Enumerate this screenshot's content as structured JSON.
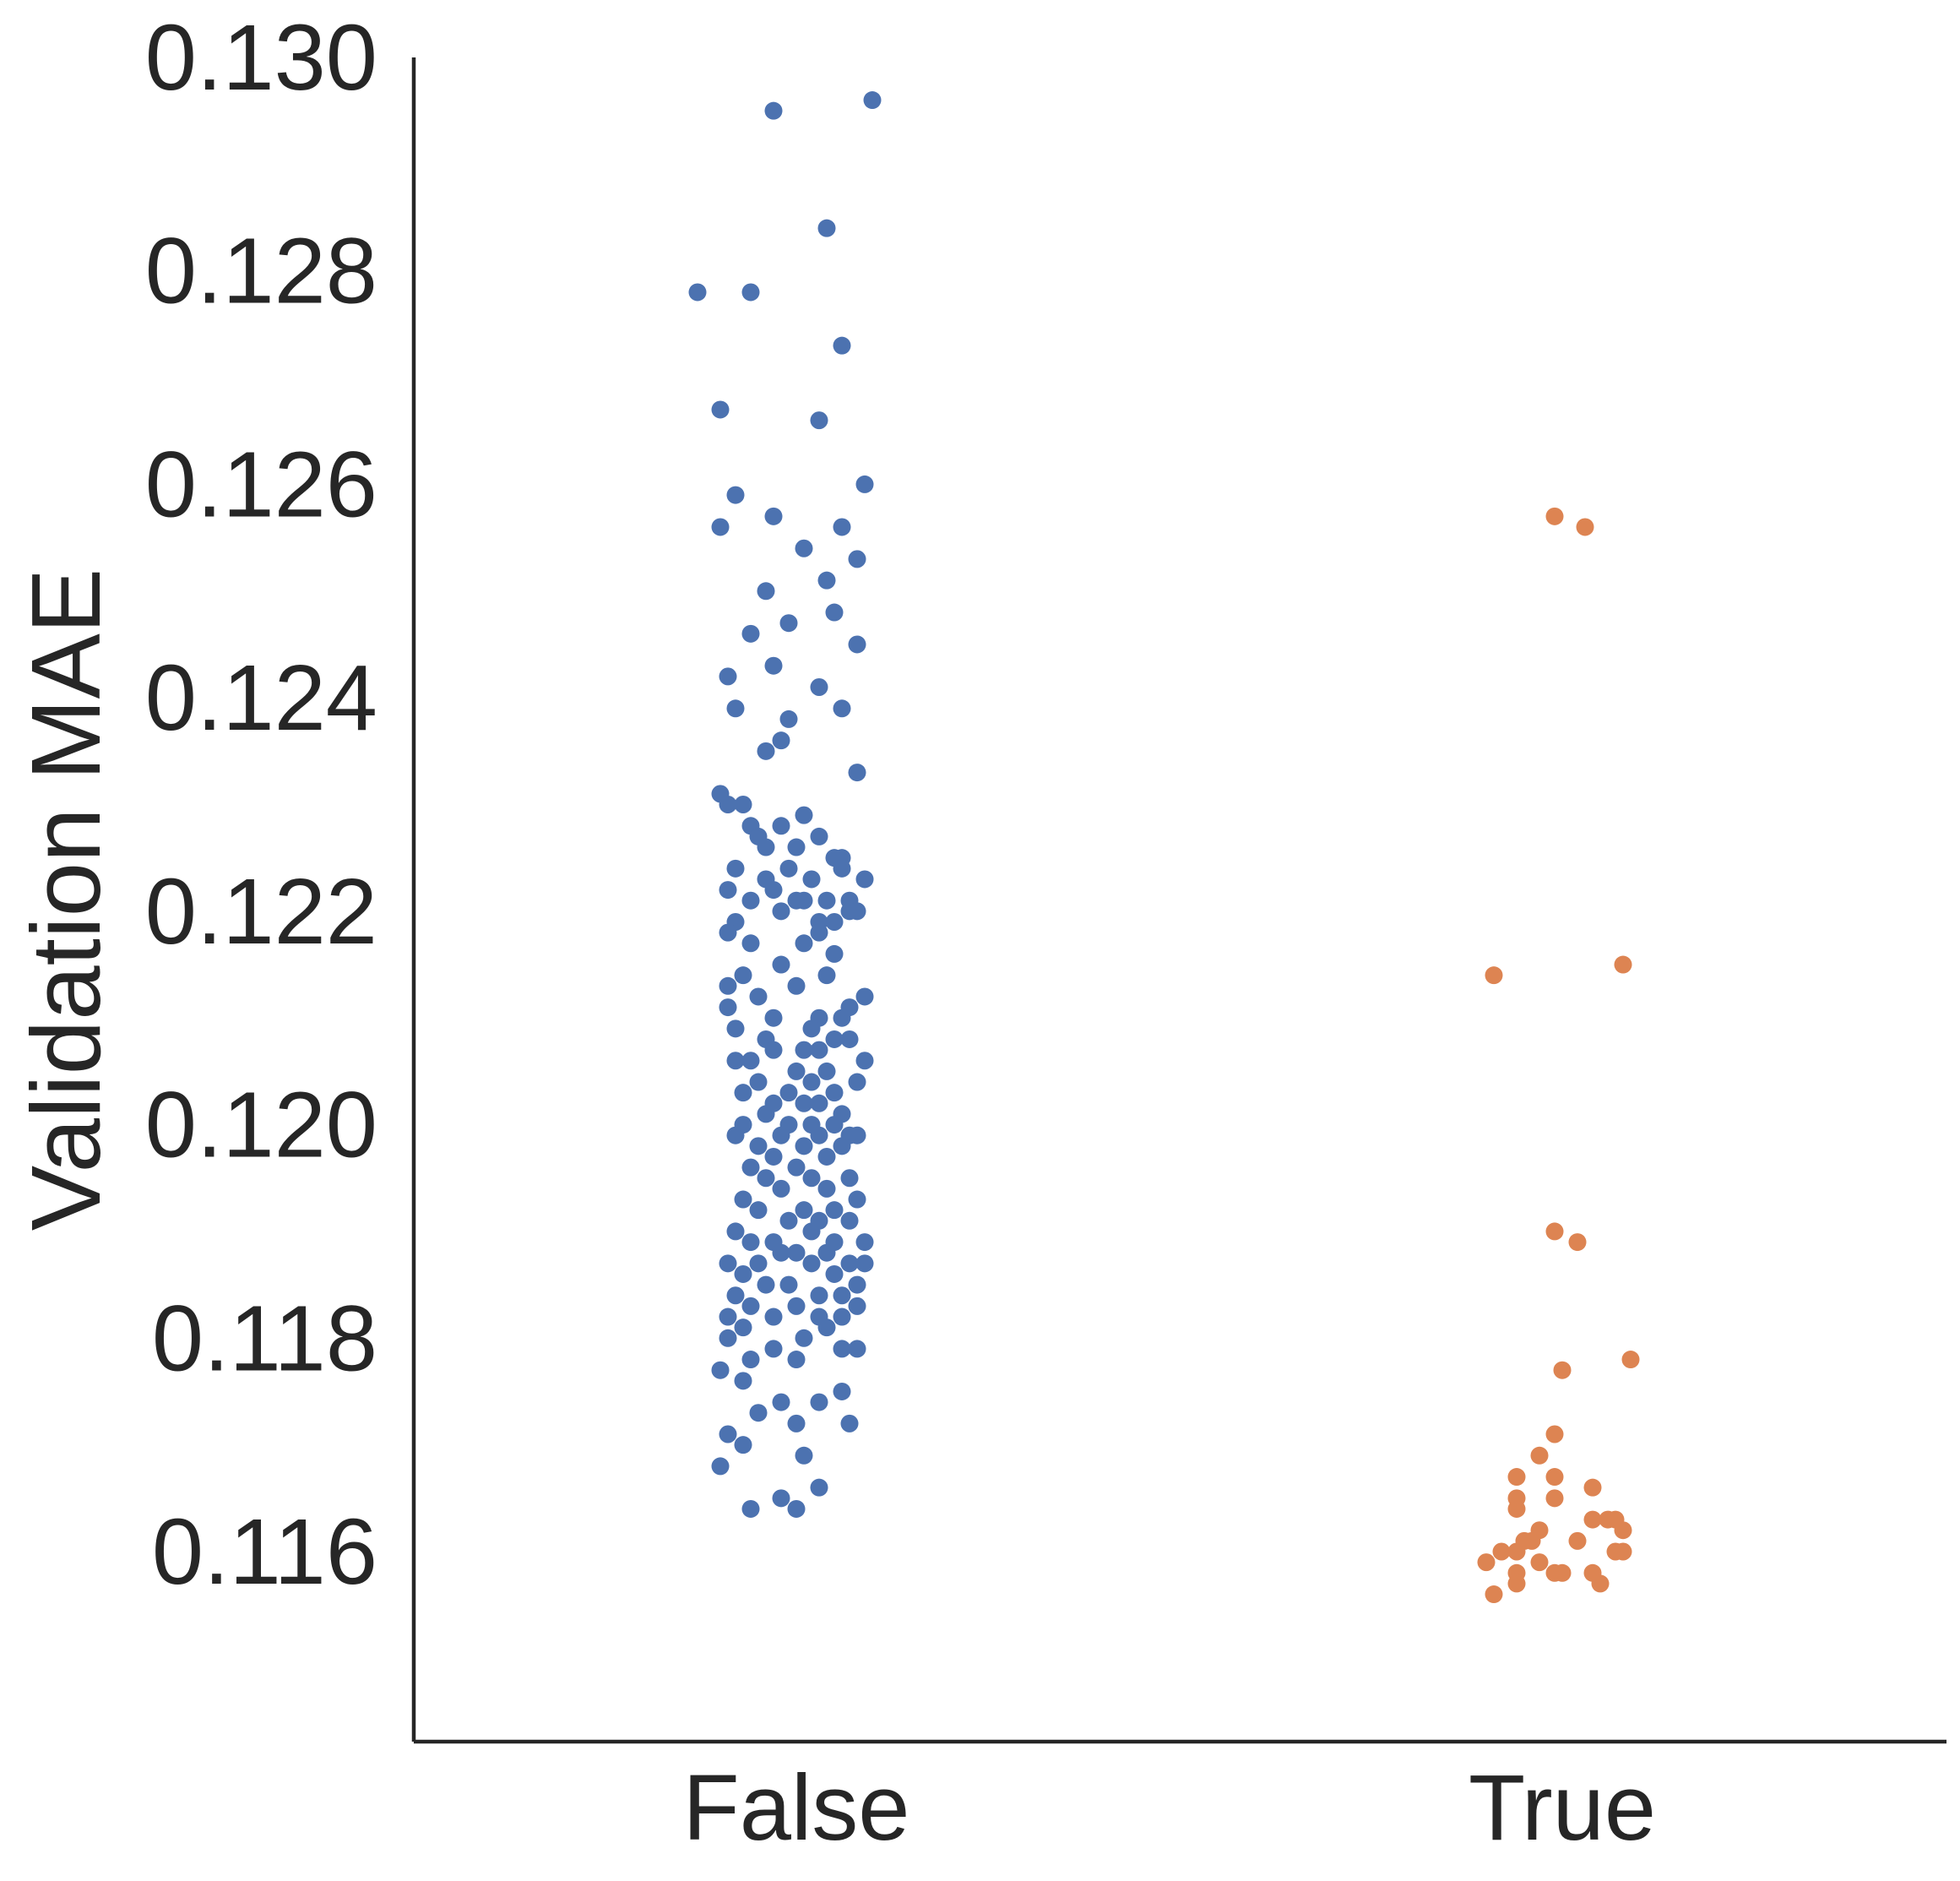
{
  "chart_data": {
    "type": "scatter",
    "subtype": "strip",
    "title": "",
    "xlabel": "",
    "ylabel": "Validation MAE",
    "categories": [
      "False",
      "True"
    ],
    "ylim": [
      0.1143,
      0.13
    ],
    "yticks": [
      "0.116",
      "0.118",
      "0.120",
      "0.122",
      "0.124",
      "0.126",
      "0.128",
      "0.130"
    ],
    "grid": false,
    "legend": "none",
    "colors": {
      "False": "#4c72b0",
      "True": "#dd8452",
      "axis": "#262626",
      "background": "#ffffff"
    },
    "series": [
      {
        "category": "False",
        "points": [
          [
            -0.03,
            0.1295
          ],
          [
            0.1,
            0.1296
          ],
          [
            0.04,
            0.1284
          ],
          [
            -0.06,
            0.1278
          ],
          [
            -0.13,
            0.1278
          ],
          [
            0.06,
            0.1273
          ],
          [
            -0.1,
            0.1267
          ],
          [
            0.03,
            0.1266
          ],
          [
            0.09,
            0.126
          ],
          [
            -0.08,
            0.1259
          ],
          [
            -0.03,
            0.1257
          ],
          [
            0.01,
            0.1254
          ],
          [
            0.08,
            0.1253
          ],
          [
            -0.1,
            0.1256
          ],
          [
            0.06,
            0.1256
          ],
          [
            0.04,
            0.1251
          ],
          [
            -0.04,
            0.125
          ],
          [
            -0.01,
            0.1247
          ],
          [
            0.05,
            0.1248
          ],
          [
            0.08,
            0.1245
          ],
          [
            -0.06,
            0.1246
          ],
          [
            -0.03,
            0.1243
          ],
          [
            0.03,
            0.1241
          ],
          [
            -0.09,
            0.1242
          ],
          [
            -0.08,
            0.1239
          ],
          [
            0.06,
            0.1239
          ],
          [
            -0.01,
            0.1238
          ],
          [
            -0.02,
            0.1236
          ],
          [
            -0.04,
            0.1235
          ],
          [
            0.08,
            0.1233
          ],
          [
            -0.1,
            0.1231
          ],
          [
            -0.09,
            0.123
          ],
          [
            -0.07,
            0.123
          ],
          [
            0.01,
            0.1229
          ],
          [
            0.03,
            0.1227
          ],
          [
            -0.06,
            0.1228
          ],
          [
            -0.02,
            0.1228
          ],
          [
            -0.05,
            0.1227
          ],
          [
            0.05,
            0.1225
          ],
          [
            0.0,
            0.1226
          ],
          [
            -0.04,
            0.1226
          ],
          [
            0.06,
            0.1225
          ],
          [
            0.06,
            0.1224
          ],
          [
            -0.01,
            0.1224
          ],
          [
            -0.08,
            0.1224
          ],
          [
            0.09,
            0.1223
          ],
          [
            0.02,
            0.1223
          ],
          [
            -0.04,
            0.1223
          ],
          [
            -0.03,
            0.1222
          ],
          [
            0.04,
            0.1221
          ],
          [
            0.07,
            0.1221
          ],
          [
            0.0,
            0.1221
          ],
          [
            -0.09,
            0.1222
          ],
          [
            0.01,
            0.1221
          ],
          [
            -0.06,
            0.1221
          ],
          [
            -0.08,
            0.1219
          ],
          [
            0.07,
            0.122
          ],
          [
            0.03,
            0.1219
          ],
          [
            0.08,
            0.122
          ],
          [
            -0.02,
            0.122
          ],
          [
            0.05,
            0.1219
          ],
          [
            0.03,
            0.1218
          ],
          [
            -0.09,
            0.1218
          ],
          [
            -0.06,
            0.1217
          ],
          [
            0.01,
            0.1217
          ],
          [
            0.05,
            0.1216
          ],
          [
            -0.02,
            0.1215
          ],
          [
            0.04,
            0.1214
          ],
          [
            -0.07,
            0.1214
          ],
          [
            0.0,
            0.1213
          ],
          [
            0.09,
            0.1212
          ],
          [
            -0.09,
            0.1213
          ],
          [
            -0.05,
            0.1212
          ],
          [
            0.07,
            0.1211
          ],
          [
            0.06,
            0.121
          ],
          [
            -0.09,
            0.1211
          ],
          [
            -0.03,
            0.121
          ],
          [
            0.03,
            0.121
          ],
          [
            0.02,
            0.1209
          ],
          [
            -0.08,
            0.1209
          ],
          [
            0.05,
            0.1208
          ],
          [
            0.07,
            0.1208
          ],
          [
            -0.04,
            0.1208
          ],
          [
            0.01,
            0.1207
          ],
          [
            -0.03,
            0.1207
          ],
          [
            0.03,
            0.1207
          ],
          [
            -0.06,
            0.1206
          ],
          [
            0.09,
            0.1206
          ],
          [
            -0.08,
            0.1206
          ],
          [
            0.04,
            0.1205
          ],
          [
            0.0,
            0.1205
          ],
          [
            0.02,
            0.1204
          ],
          [
            -0.05,
            0.1204
          ],
          [
            0.08,
            0.1204
          ],
          [
            0.05,
            0.1203
          ],
          [
            -0.01,
            0.1203
          ],
          [
            -0.07,
            0.1203
          ],
          [
            0.01,
            0.1202
          ],
          [
            0.03,
            0.1202
          ],
          [
            -0.03,
            0.1202
          ],
          [
            0.06,
            0.1201
          ],
          [
            -0.04,
            0.1201
          ],
          [
            0.02,
            0.12
          ],
          [
            -0.07,
            0.12
          ],
          [
            0.05,
            0.12
          ],
          [
            -0.01,
            0.12
          ],
          [
            0.07,
            0.1199
          ],
          [
            0.03,
            0.1199
          ],
          [
            -0.02,
            0.1199
          ],
          [
            -0.08,
            0.1199
          ],
          [
            0.08,
            0.1199
          ],
          [
            0.01,
            0.1198
          ],
          [
            -0.05,
            0.1198
          ],
          [
            0.06,
            0.1198
          ],
          [
            -0.03,
            0.1197
          ],
          [
            0.04,
            0.1197
          ],
          [
            0.0,
            0.1196
          ],
          [
            -0.06,
            0.1196
          ],
          [
            0.02,
            0.1195
          ],
          [
            -0.04,
            0.1195
          ],
          [
            0.07,
            0.1195
          ],
          [
            -0.02,
            0.1194
          ],
          [
            0.04,
            0.1194
          ],
          [
            0.08,
            0.1193
          ],
          [
            -0.07,
            0.1193
          ],
          [
            0.01,
            0.1192
          ],
          [
            -0.05,
            0.1192
          ],
          [
            0.05,
            0.1192
          ],
          [
            -0.01,
            0.1191
          ],
          [
            0.03,
            0.1191
          ],
          [
            0.07,
            0.1191
          ],
          [
            -0.08,
            0.119
          ],
          [
            0.02,
            0.119
          ],
          [
            -0.03,
            0.1189
          ],
          [
            0.05,
            0.1189
          ],
          [
            0.09,
            0.1189
          ],
          [
            -0.06,
            0.1189
          ],
          [
            0.0,
            0.1188
          ],
          [
            -0.02,
            0.1188
          ],
          [
            0.04,
            0.1188
          ],
          [
            -0.09,
            0.1187
          ],
          [
            0.07,
            0.1187
          ],
          [
            0.02,
            0.1187
          ],
          [
            -0.05,
            0.1187
          ],
          [
            0.09,
            0.1187
          ],
          [
            -0.07,
            0.1186
          ],
          [
            0.05,
            0.1186
          ],
          [
            -0.01,
            0.1185
          ],
          [
            0.08,
            0.1185
          ],
          [
            -0.04,
            0.1185
          ],
          [
            0.03,
            0.1184
          ],
          [
            -0.08,
            0.1184
          ],
          [
            0.06,
            0.1184
          ],
          [
            0.0,
            0.1183
          ],
          [
            -0.06,
            0.1183
          ],
          [
            0.08,
            0.1183
          ],
          [
            0.03,
            0.1182
          ],
          [
            -0.09,
            0.1182
          ],
          [
            0.06,
            0.1182
          ],
          [
            -0.03,
            0.1182
          ],
          [
            0.04,
            0.1181
          ],
          [
            -0.07,
            0.1181
          ],
          [
            0.01,
            0.118
          ],
          [
            -0.09,
            0.118
          ],
          [
            0.06,
            0.1179
          ],
          [
            -0.03,
            0.1179
          ],
          [
            0.08,
            0.1179
          ],
          [
            -0.06,
            0.1178
          ],
          [
            0.0,
            0.1178
          ],
          [
            -0.1,
            0.1177
          ],
          [
            -0.07,
            0.1176
          ],
          [
            0.06,
            0.1175
          ],
          [
            -0.02,
            0.1174
          ],
          [
            0.03,
            0.1174
          ],
          [
            -0.05,
            0.1173
          ],
          [
            0.0,
            0.1172
          ],
          [
            0.07,
            0.1172
          ],
          [
            -0.09,
            0.1171
          ],
          [
            -0.07,
            0.117
          ],
          [
            0.01,
            0.1169
          ],
          [
            -0.1,
            0.1168
          ],
          [
            0.03,
            0.1166
          ],
          [
            -0.02,
            0.1165
          ],
          [
            -0.06,
            0.1164
          ],
          [
            0.0,
            0.1164
          ]
        ]
      },
      {
        "category": "True",
        "points": [
          [
            -0.01,
            0.1257
          ],
          [
            0.03,
            0.1256
          ],
          [
            0.08,
            0.1215
          ],
          [
            -0.09,
            0.1214
          ],
          [
            -0.01,
            0.119
          ],
          [
            0.02,
            0.1189
          ],
          [
            0.09,
            0.1178
          ],
          [
            0.0,
            0.1177
          ],
          [
            -0.01,
            0.1171
          ],
          [
            -0.03,
            0.1169
          ],
          [
            -0.06,
            0.1167
          ],
          [
            -0.01,
            0.1167
          ],
          [
            0.04,
            0.1166
          ],
          [
            -0.06,
            0.1165
          ],
          [
            -0.06,
            0.1164
          ],
          [
            -0.01,
            0.1165
          ],
          [
            0.04,
            0.1163
          ],
          [
            0.07,
            0.1163
          ],
          [
            0.06,
            0.1163
          ],
          [
            0.08,
            0.1162
          ],
          [
            -0.03,
            0.1162
          ],
          [
            0.02,
            0.1161
          ],
          [
            -0.05,
            0.1161
          ],
          [
            -0.04,
            0.1161
          ],
          [
            -0.06,
            0.116
          ],
          [
            0.08,
            0.116
          ],
          [
            0.07,
            0.116
          ],
          [
            -0.08,
            0.116
          ],
          [
            -0.1,
            0.1159
          ],
          [
            -0.03,
            0.1159
          ],
          [
            -0.01,
            0.1158
          ],
          [
            0.04,
            0.1158
          ],
          [
            0.0,
            0.1158
          ],
          [
            -0.06,
            0.1157
          ],
          [
            -0.06,
            0.1158
          ],
          [
            0.05,
            0.1157
          ],
          [
            -0.09,
            0.1156
          ]
        ]
      }
    ]
  }
}
